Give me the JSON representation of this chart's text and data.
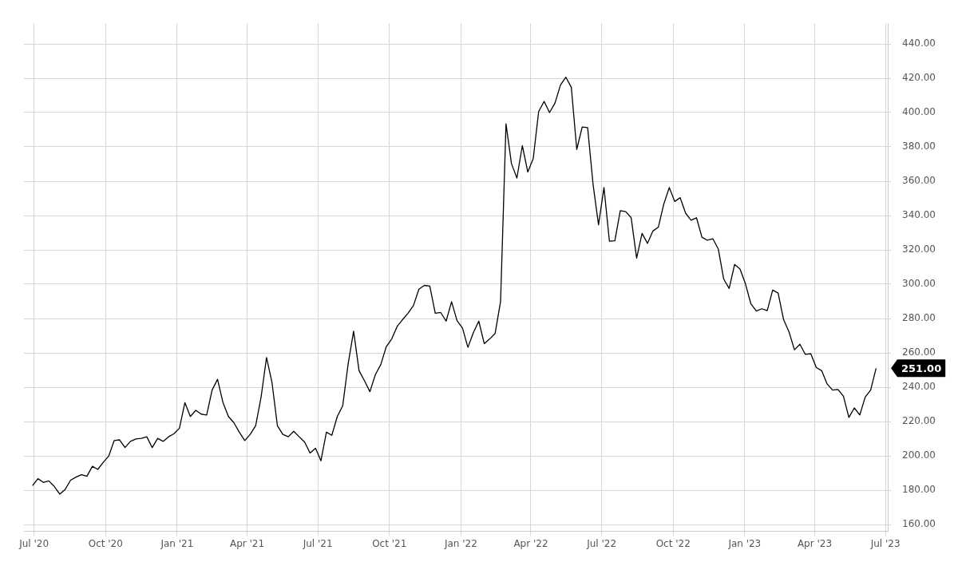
{
  "chart_data": {
    "type": "line",
    "x": [
      "2020-06-29",
      "2020-07-06",
      "2020-07-13",
      "2020-07-20",
      "2020-07-27",
      "2020-08-03",
      "2020-08-10",
      "2020-08-17",
      "2020-08-24",
      "2020-08-31",
      "2020-09-07",
      "2020-09-14",
      "2020-09-21",
      "2020-09-28",
      "2020-10-05",
      "2020-10-12",
      "2020-10-19",
      "2020-10-26",
      "2020-11-02",
      "2020-11-09",
      "2020-11-16",
      "2020-11-23",
      "2020-11-30",
      "2020-12-07",
      "2020-12-14",
      "2020-12-21",
      "2020-12-28",
      "2021-01-04",
      "2021-01-11",
      "2021-01-18",
      "2021-01-25",
      "2021-02-01",
      "2021-02-08",
      "2021-02-15",
      "2021-02-22",
      "2021-03-01",
      "2021-03-08",
      "2021-03-15",
      "2021-03-22",
      "2021-03-29",
      "2021-04-05",
      "2021-04-12",
      "2021-04-19",
      "2021-04-26",
      "2021-05-03",
      "2021-05-10",
      "2021-05-17",
      "2021-05-24",
      "2021-05-31",
      "2021-06-07",
      "2021-06-14",
      "2021-06-21",
      "2021-06-28",
      "2021-07-05",
      "2021-07-12",
      "2021-07-19",
      "2021-07-26",
      "2021-08-02",
      "2021-08-09",
      "2021-08-16",
      "2021-08-23",
      "2021-08-30",
      "2021-09-06",
      "2021-09-13",
      "2021-09-20",
      "2021-09-27",
      "2021-10-04",
      "2021-10-11",
      "2021-10-18",
      "2021-10-25",
      "2021-11-01",
      "2021-11-08",
      "2021-11-15",
      "2021-11-22",
      "2021-11-29",
      "2021-12-06",
      "2021-12-13",
      "2021-12-20",
      "2021-12-27",
      "2022-01-03",
      "2022-01-10",
      "2022-01-17",
      "2022-01-24",
      "2022-01-31",
      "2022-02-07",
      "2022-02-14",
      "2022-02-21",
      "2022-02-28",
      "2022-03-07",
      "2022-03-14",
      "2022-03-21",
      "2022-03-28",
      "2022-04-04",
      "2022-04-11",
      "2022-04-18",
      "2022-04-25",
      "2022-05-02",
      "2022-05-09",
      "2022-05-16",
      "2022-05-23",
      "2022-05-30",
      "2022-06-06",
      "2022-06-13",
      "2022-06-20",
      "2022-06-27",
      "2022-07-04",
      "2022-07-11",
      "2022-07-18",
      "2022-07-25",
      "2022-08-01",
      "2022-08-08",
      "2022-08-15",
      "2022-08-22",
      "2022-08-29",
      "2022-09-05",
      "2022-09-12",
      "2022-09-19",
      "2022-09-26",
      "2022-10-03",
      "2022-10-10",
      "2022-10-17",
      "2022-10-24",
      "2022-10-31",
      "2022-11-07",
      "2022-11-14",
      "2022-11-21",
      "2022-11-28",
      "2022-12-05",
      "2022-12-12",
      "2022-12-19",
      "2022-12-26",
      "2023-01-02",
      "2023-01-09",
      "2023-01-16",
      "2023-01-23",
      "2023-01-30",
      "2023-02-06",
      "2023-02-13",
      "2023-02-20",
      "2023-02-27",
      "2023-03-06",
      "2023-03-13",
      "2023-03-20",
      "2023-03-27",
      "2023-04-03",
      "2023-04-10",
      "2023-04-17",
      "2023-04-24",
      "2023-05-01",
      "2023-05-08",
      "2023-05-15",
      "2023-05-22",
      "2023-05-29",
      "2023-06-05",
      "2023-06-12",
      "2023-06-19"
    ],
    "series": [
      {
        "color": "#000000",
        "values": [
          182.6,
          186.7,
          184.5,
          185.4,
          182.2,
          177.7,
          180.4,
          185.8,
          187.6,
          189.0,
          188.1,
          193.9,
          192.1,
          196.2,
          199.8,
          208.9,
          209.3,
          204.8,
          208.4,
          209.8,
          210.2,
          211.1,
          204.8,
          210.2,
          208.4,
          211.1,
          212.9,
          216.1,
          231.0,
          222.9,
          226.5,
          224.3,
          223.8,
          238.3,
          244.6,
          231.0,
          222.9,
          219.3,
          213.8,
          208.9,
          212.5,
          217.5,
          234.2,
          257.3,
          242.8,
          217.5,
          212.5,
          211.1,
          214.3,
          211.1,
          208.0,
          201.6,
          204.4,
          197.1,
          213.8,
          212.0,
          222.9,
          229.2,
          253.7,
          272.6,
          249.6,
          243.7,
          237.4,
          247.3,
          253.2,
          263.6,
          268.1,
          275.4,
          279.4,
          283.1,
          287.6,
          297.1,
          299.3,
          298.9,
          283.1,
          283.5,
          278.5,
          289.8,
          278.8,
          274.5,
          263.2,
          271.7,
          278.5,
          265.4,
          268.1,
          271.3,
          289.8,
          393.4,
          370.3,
          361.8,
          380.7,
          365.4,
          373.1,
          400.6,
          406.5,
          400.0,
          405.5,
          416.0,
          420.6,
          414.7,
          378.5,
          391.6,
          391.2,
          358.1,
          334.6,
          356.3,
          325.1,
          325.3,
          342.8,
          342.3,
          338.7,
          315.2,
          329.6,
          323.8,
          331.0,
          333.3,
          346.8,
          356.3,
          348.2,
          350.4,
          341.4,
          337.3,
          338.7,
          327.4,
          325.6,
          326.5,
          320.6,
          303.0,
          297.5,
          311.5,
          308.8,
          300.2,
          288.5,
          284.4,
          285.7,
          284.6,
          296.6,
          294.8,
          279.4,
          272.2,
          261.8,
          265.0,
          259.1,
          259.5,
          251.5,
          249.6,
          241.9,
          238.3,
          238.7,
          234.7,
          222.4,
          227.9,
          223.8,
          234.2,
          238.3,
          251.0
        ]
      }
    ],
    "xlim": [
      "2020-06-18",
      "2023-07-04"
    ],
    "xticks": [
      {
        "value": "2020-07-01",
        "label": "Jul '20"
      },
      {
        "value": "2020-10-01",
        "label": "Oct '20"
      },
      {
        "value": "2021-01-01",
        "label": "Jan '21"
      },
      {
        "value": "2021-04-01",
        "label": "Apr '21"
      },
      {
        "value": "2021-07-01",
        "label": "Jul '21"
      },
      {
        "value": "2021-10-01",
        "label": "Oct '21"
      },
      {
        "value": "2022-01-01",
        "label": "Jan '22"
      },
      {
        "value": "2022-04-01",
        "label": "Apr '22"
      },
      {
        "value": "2022-07-01",
        "label": "Jul '22"
      },
      {
        "value": "2022-10-01",
        "label": "Oct '22"
      },
      {
        "value": "2023-01-01",
        "label": "Jan '23"
      },
      {
        "value": "2023-04-01",
        "label": "Apr '23"
      },
      {
        "value": "2023-07-01",
        "label": "Jul '23"
      }
    ],
    "ylim": [
      156,
      452
    ],
    "yticks": [
      {
        "value": 160,
        "label": "160.00"
      },
      {
        "value": 180,
        "label": "180.00"
      },
      {
        "value": 200,
        "label": "200.00"
      },
      {
        "value": 220,
        "label": "220.00"
      },
      {
        "value": 240,
        "label": "240.00"
      },
      {
        "value": 260,
        "label": "260.00"
      },
      {
        "value": 280,
        "label": "280.00"
      },
      {
        "value": 300,
        "label": "300.00"
      },
      {
        "value": 320,
        "label": "320.00"
      },
      {
        "value": 340,
        "label": "340.00"
      },
      {
        "value": 360,
        "label": "360.00"
      },
      {
        "value": 380,
        "label": "380.00"
      },
      {
        "value": 400,
        "label": "400.00"
      },
      {
        "value": 420,
        "label": "420.00"
      },
      {
        "value": 440,
        "label": "440.00"
      }
    ],
    "annotations": [
      "251.00"
    ],
    "grid": true,
    "legend": false,
    "marker": "none",
    "line_style": "solid"
  }
}
